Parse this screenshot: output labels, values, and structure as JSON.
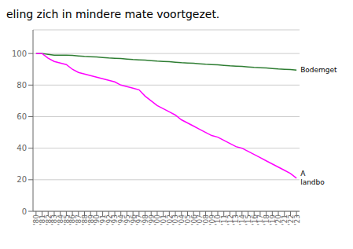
{
  "chart_data": {
    "type": "line",
    "title": "eling zich in mindere mate voortgezet.",
    "x": [
      1980,
      1981,
      1982,
      1983,
      1984,
      1985,
      1986,
      1987,
      1988,
      1989,
      1990,
      1991,
      1992,
      1993,
      1994,
      1995,
      1996,
      1997,
      1998,
      1999,
      2000,
      2001,
      2002,
      2003,
      2004,
      2005,
      2006,
      2007,
      2008,
      2009,
      2010,
      2011,
      2012,
      2013,
      2014,
      2015,
      2016,
      2017,
      2018,
      2019,
      2020,
      2021,
      2022,
      2023
    ],
    "series": [
      {
        "color": "#2e7d32",
        "values": [
          100,
          100,
          99.5,
          99,
          99,
          99,
          98.8,
          98.5,
          98.2,
          98,
          97.8,
          97.5,
          97.2,
          97,
          96.8,
          96.5,
          96.2,
          96,
          95.8,
          95.5,
          95.2,
          95,
          94.8,
          94.5,
          94.2,
          94,
          93.8,
          93.5,
          93.2,
          93,
          92.8,
          92.5,
          92.2,
          92,
          91.8,
          91.5,
          91.2,
          91,
          90.8,
          90.5,
          90.2,
          90,
          89.8,
          89.5
        ]
      },
      {
        "color": "#ff00ff",
        "values": [
          100,
          100,
          97,
          95,
          94,
          93,
          90,
          88,
          87,
          86,
          85,
          84,
          83,
          82,
          80,
          79,
          78,
          77,
          73,
          70,
          67,
          65,
          63,
          61,
          58,
          56,
          54,
          52,
          50,
          48,
          47,
          45,
          43,
          41,
          40,
          38,
          36,
          34,
          32,
          30,
          28,
          26,
          24,
          21
        ]
      }
    ],
    "annotations": [
      {
        "text": "Bodemget",
        "x": 2023,
        "y": 89.5
      },
      {
        "text": "A\nlandbo",
        "x": 2023,
        "y": 21
      }
    ],
    "xlim": [
      1979.5,
      2023.5
    ],
    "xticks": [
      {
        "value": 1980,
        "label": "'80"
      },
      {
        "value": 1981,
        "label": "'81"
      },
      {
        "value": 1982,
        "label": "'82"
      },
      {
        "value": 1983,
        "label": "'83"
      },
      {
        "value": 1984,
        "label": "'84"
      },
      {
        "value": 1985,
        "label": "'85"
      },
      {
        "value": 1986,
        "label": "'86"
      },
      {
        "value": 1987,
        "label": "'87"
      },
      {
        "value": 1988,
        "label": "'88"
      },
      {
        "value": 1989,
        "label": "'89"
      },
      {
        "value": 1990,
        "label": "'90"
      },
      {
        "value": 1991,
        "label": "'91"
      },
      {
        "value": 1992,
        "label": "'92"
      },
      {
        "value": 1993,
        "label": "'93"
      },
      {
        "value": 1994,
        "label": "'94"
      },
      {
        "value": 1995,
        "label": "'95"
      },
      {
        "value": 1996,
        "label": "'96"
      },
      {
        "value": 1997,
        "label": "'97"
      },
      {
        "value": 1998,
        "label": "'98"
      },
      {
        "value": 1999,
        "label": "'99"
      },
      {
        "value": 2000,
        "label": "'00"
      },
      {
        "value": 2001,
        "label": "'01"
      },
      {
        "value": 2002,
        "label": "'02"
      },
      {
        "value": 2003,
        "label": "'03"
      },
      {
        "value": 2004,
        "label": "'04"
      },
      {
        "value": 2005,
        "label": "'05"
      },
      {
        "value": 2006,
        "label": "'06"
      },
      {
        "value": 2007,
        "label": "'07"
      },
      {
        "value": 2008,
        "label": "'08"
      },
      {
        "value": 2009,
        "label": "'09"
      },
      {
        "value": 2010,
        "label": "'10"
      },
      {
        "value": 2011,
        "label": "'11"
      },
      {
        "value": 2012,
        "label": "'12"
      },
      {
        "value": 2013,
        "label": "'13"
      },
      {
        "value": 2014,
        "label": "'14"
      },
      {
        "value": 2015,
        "label": "'15"
      },
      {
        "value": 2016,
        "label": "'16"
      },
      {
        "value": 2017,
        "label": "'17"
      },
      {
        "value": 2018,
        "label": "'18"
      },
      {
        "value": 2019,
        "label": "'19"
      },
      {
        "value": 2020,
        "label": "'20"
      },
      {
        "value": 2021,
        "label": "'21"
      },
      {
        "value": 2022,
        "label": "'22"
      },
      {
        "value": 2023,
        "label": "'23"
      }
    ],
    "ylim": [
      0,
      115
    ],
    "yticks": [
      0,
      20,
      40,
      60,
      80,
      100
    ],
    "grid": true
  }
}
